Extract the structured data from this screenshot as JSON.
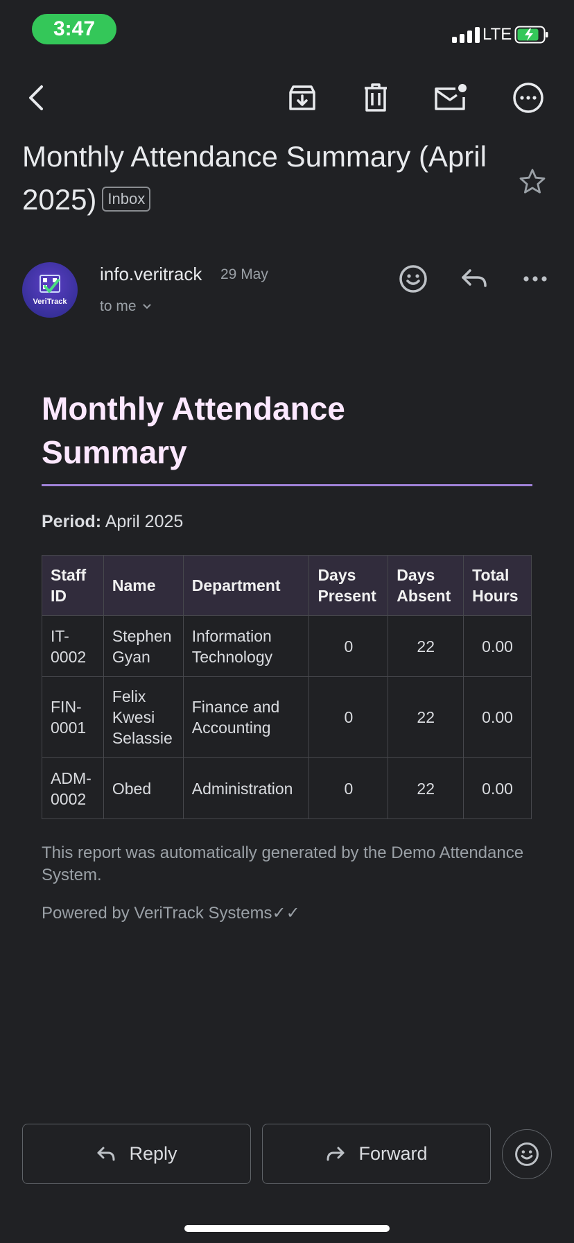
{
  "status_bar": {
    "time": "3:47",
    "network": "LTE"
  },
  "email": {
    "subject": "Monthly Attendance Summary (April 2025)",
    "label": "Inbox",
    "sender": {
      "name": "info.veritrack",
      "date": "29 May",
      "recipient": "to me",
      "avatar_text": "VeriTrack"
    }
  },
  "body": {
    "heading": "Monthly Attendance Summary",
    "period_label": "Period:",
    "period_value": "April 2025",
    "table": {
      "headers": [
        "Staff ID",
        "Name",
        "Department",
        "Days Present",
        "Days Absent",
        "Total Hours"
      ],
      "rows": [
        [
          "IT-0002",
          "Stephen Gyan",
          "Information Technology",
          "0",
          "22",
          "0.00"
        ],
        [
          "FIN-0001",
          "Felix Kwesi Selassie",
          "Finance and Accounting",
          "0",
          "22",
          "0.00"
        ],
        [
          "ADM-0002",
          "Obed",
          "Administration",
          "0",
          "22",
          "0.00"
        ]
      ]
    },
    "footer_note": "This report was automatically generated by the Demo Attendance System.",
    "powered_by": "Powered by VeriTrack Systems✓✓"
  },
  "actions": {
    "reply_label": "Reply",
    "forward_label": "Forward"
  },
  "colors": {
    "status_green": "#34c759",
    "heading": "#fce8ff",
    "accent_rule": "#a082d8",
    "background": "#202124"
  },
  "icons": [
    "back-icon",
    "archive-icon",
    "trash-icon",
    "mark-unread-icon",
    "more-circle-icon",
    "star-icon",
    "emoji-icon",
    "reply-icon",
    "more-horizontal-icon",
    "forward-icon"
  ]
}
